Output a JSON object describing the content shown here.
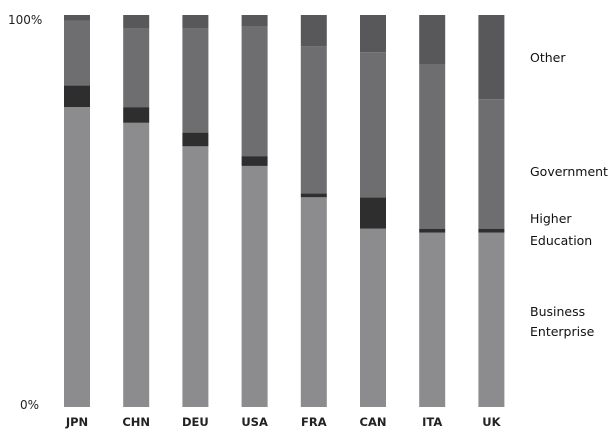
{
  "chart_data": {
    "type": "bar",
    "stacked": true,
    "normalized": true,
    "title": "",
    "xlabel": "",
    "ylabel": "",
    "ylim": [
      0,
      100
    ],
    "y_tick_labels": [
      "0%",
      "100%"
    ],
    "grid": false,
    "legend_placement": "right",
    "categories": [
      "JPN",
      "CHN",
      "DEU",
      "USA",
      "FRA",
      "CAN",
      "ITA",
      "UK"
    ],
    "series": [
      {
        "name": "Business Enterprise",
        "color": "#8c8c8e",
        "values": [
          76.5,
          72.5,
          66.5,
          61.5,
          53.5,
          45.5,
          44.5,
          44.5
        ]
      },
      {
        "name": "Higher Education",
        "color": "#2e2e2e",
        "values": [
          5.5,
          4.0,
          3.5,
          2.5,
          1.0,
          8.0,
          1.0,
          1.0
        ]
      },
      {
        "name": "Government",
        "color": "#6e6e70",
        "values": [
          16.5,
          20.0,
          26.5,
          33.0,
          37.5,
          37.0,
          42.0,
          33.0
        ]
      },
      {
        "name": "Other",
        "color": "#58585a",
        "values": [
          1.5,
          3.5,
          3.5,
          3.0,
          8.0,
          9.5,
          12.5,
          21.5
        ]
      }
    ]
  }
}
